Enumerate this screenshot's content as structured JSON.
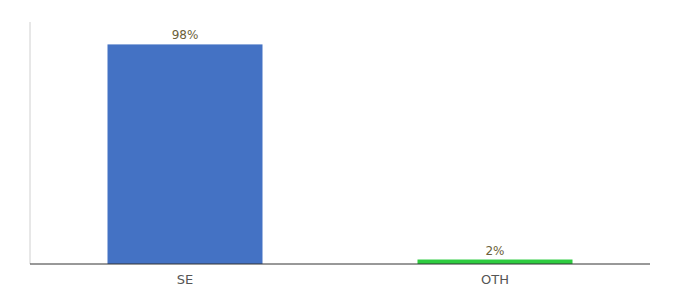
{
  "chart_data": {
    "type": "bar",
    "categories": [
      "SE",
      "OTH"
    ],
    "values": [
      98,
      2
    ],
    "value_labels": [
      "98%",
      "2%"
    ],
    "colors": [
      "#4472C4",
      "#2ECC40"
    ],
    "ylim": [
      0,
      108
    ],
    "data_labels": true,
    "tick_labels": "x",
    "grid": false
  }
}
